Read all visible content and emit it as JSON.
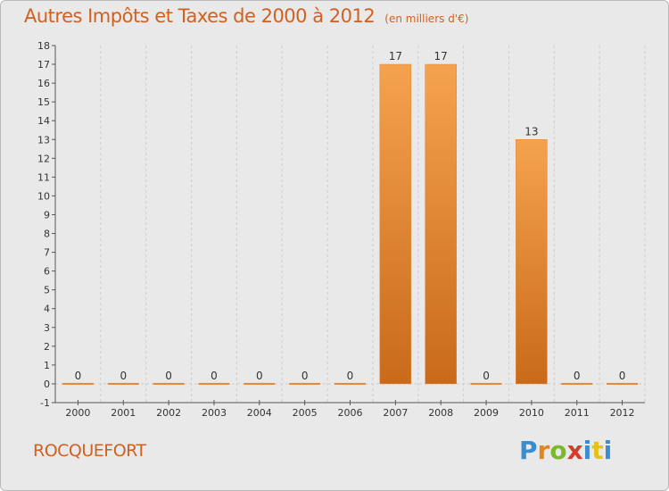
{
  "title": "Autres Impôts et Taxes de 2000 à 2012",
  "unit_label": "(en milliers d'€)",
  "commune": "ROCQUEFORT",
  "brand": {
    "letters": [
      "P",
      "r",
      "o",
      "x",
      "i",
      "t",
      "i"
    ],
    "colors": [
      "#3a8ed0",
      "#e4861c",
      "#7ab82e",
      "#d93a2a",
      "#3a8ed0",
      "#e4c21a",
      "#3a8ed0"
    ]
  },
  "colors": {
    "title": "#d2601e",
    "bar_top": "#f5a24e",
    "bar_bottom": "#c86a1a",
    "background": "#e9e9e9",
    "grid": "#cccccc"
  },
  "chart_data": {
    "type": "bar",
    "categories": [
      "2000",
      "2001",
      "2002",
      "2003",
      "2004",
      "2005",
      "2006",
      "2007",
      "2008",
      "2009",
      "2010",
      "2011",
      "2012"
    ],
    "values": [
      0,
      0,
      0,
      0,
      0,
      0,
      0,
      17,
      17,
      0,
      13,
      0,
      0
    ],
    "value_labels": [
      "0",
      "0",
      "0",
      "0",
      "0",
      "0",
      "0",
      "17",
      "17",
      "0",
      "13",
      "0",
      "0"
    ],
    "title": "Autres Impôts et Taxes de 2000 à 2012",
    "xlabel": "",
    "ylabel": "",
    "ylim": [
      -1,
      18
    ],
    "yticks": [
      -1,
      0,
      1,
      2,
      3,
      4,
      5,
      6,
      7,
      8,
      9,
      10,
      11,
      12,
      13,
      14,
      15,
      16,
      17,
      18
    ],
    "ytick_labels": [
      "-1",
      "0",
      "1",
      "2",
      "3",
      "4",
      "5",
      "6",
      "7",
      "8",
      "9",
      "10",
      "11",
      "12",
      "13",
      "14",
      "15",
      "16",
      "17",
      "18"
    ],
    "grid": true,
    "legend": "none"
  }
}
